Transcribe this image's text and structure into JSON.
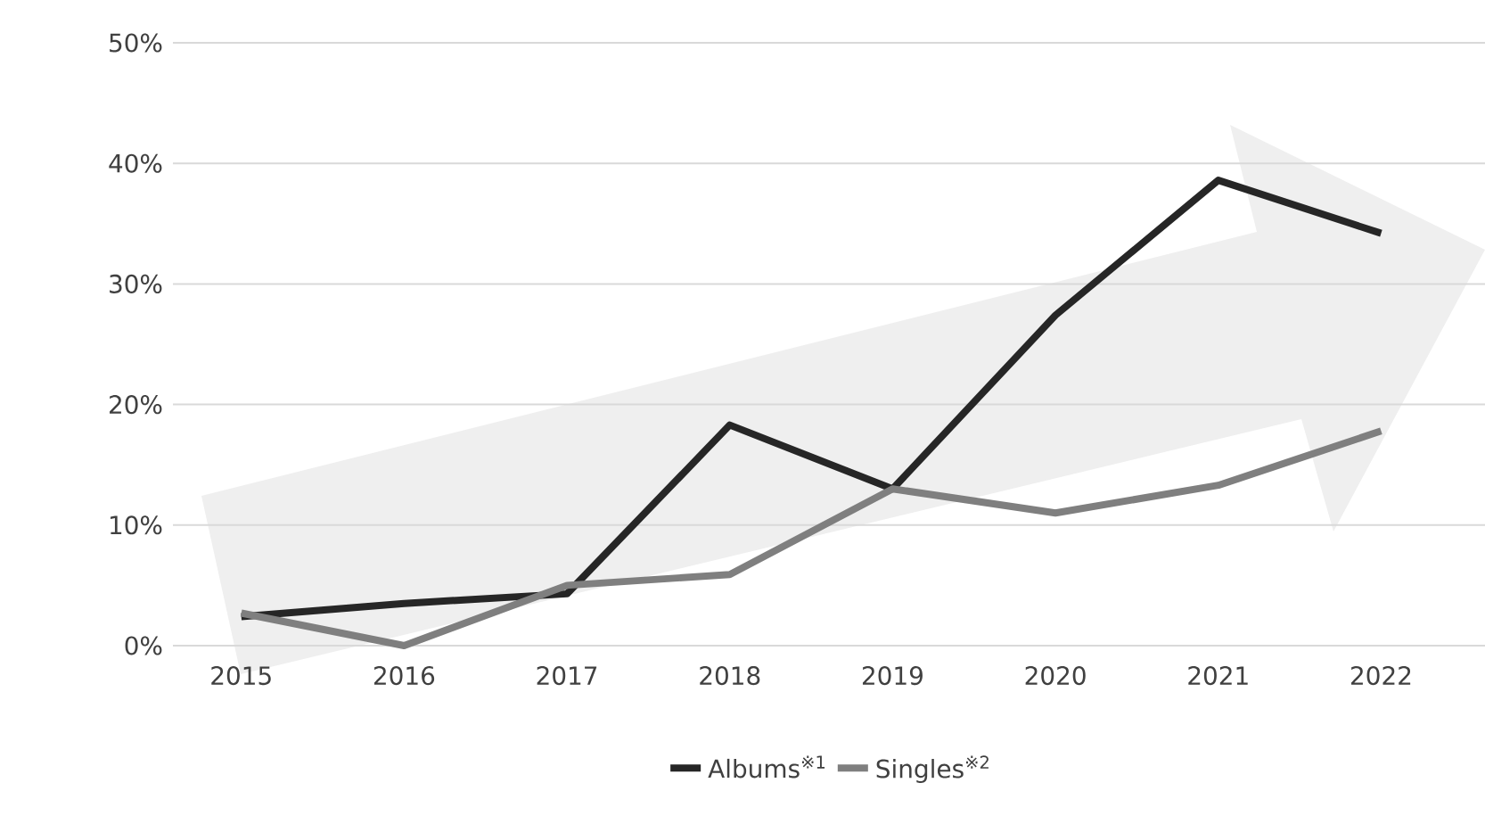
{
  "chart_data": {
    "type": "line",
    "categories": [
      "2015",
      "2016",
      "2017",
      "2018",
      "2019",
      "2020",
      "2021",
      "2022"
    ],
    "series": [
      {
        "name": "Albums$^{※1}$",
        "color": "#262626",
        "values": [
          2.4,
          3.5,
          4.3,
          18.3,
          13,
          27.4,
          38.6,
          34.2
        ]
      },
      {
        "name": "Singles$^{※2}$",
        "color": "#7f7f7f",
        "values": [
          2.7,
          0,
          5.0,
          5.9,
          13,
          11,
          13.3,
          17.8
        ]
      }
    ],
    "ylim": [
      0,
      50
    ],
    "yticks": [
      {
        "value": 0,
        "label": "0%"
      },
      {
        "value": 10,
        "label": "10%"
      },
      {
        "value": 20,
        "label": "20%"
      },
      {
        "value": 30,
        "label": "30%"
      },
      {
        "value": 40,
        "label": "40%"
      },
      {
        "value": 50,
        "label": "50%"
      }
    ],
    "grid": "y",
    "legend": "bottom",
    "marker": "none",
    "line_style": "solid"
  }
}
